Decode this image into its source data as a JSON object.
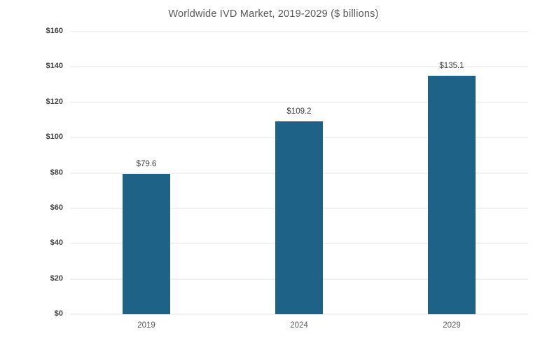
{
  "chart_data": {
    "type": "bar",
    "title": "Worldwide IVD Market, 2019-2029 ($ billions)",
    "categories": [
      "2019",
      "2024",
      "2029"
    ],
    "values": [
      79.6,
      109.2,
      135.1
    ],
    "bar_labels": [
      "$79.6",
      "$109.2",
      "$135.1"
    ],
    "yticks": [
      0,
      20,
      40,
      60,
      80,
      100,
      120,
      140,
      160
    ],
    "ytick_labels": [
      "$0",
      "$20",
      "$40",
      "$60",
      "$80",
      "$100",
      "$120",
      "$140",
      "$160"
    ],
    "ylim": [
      0,
      160
    ],
    "xlabel": "",
    "ylabel": "",
    "grid": "horizontal",
    "legend": "none",
    "bar_color": "#1f6287"
  }
}
